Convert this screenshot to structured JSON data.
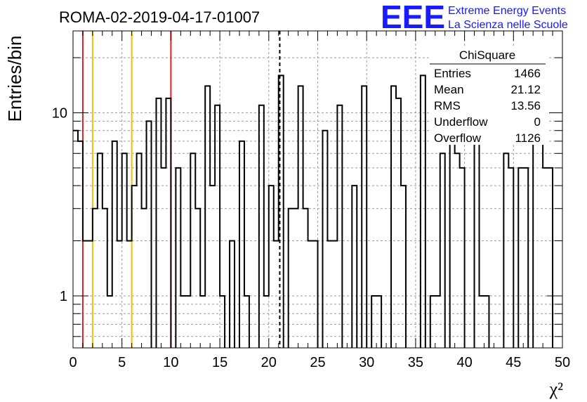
{
  "header": {
    "title": "ROMA-02-2019-04-17-01007"
  },
  "logo": {
    "letters": "EEE",
    "line1": "Extreme Energy Events",
    "line2": "La Scienza nelle Scuole"
  },
  "stats": {
    "title": "ChiSquare",
    "rows": [
      {
        "label": "Entries",
        "value": "1466"
      },
      {
        "label": "Mean",
        "value": "21.12"
      },
      {
        "label": "RMS",
        "value": "13.56"
      },
      {
        "label": "Underflow",
        "value": "0"
      },
      {
        "label": "Overflow",
        "value": "1126"
      }
    ]
  },
  "chart_data": {
    "type": "histogram",
    "ylabel": "Entries/bin",
    "xlabel": "χ²",
    "xlim": [
      0,
      50
    ],
    "ylim": [
      0.52,
      28
    ],
    "yscale": "log",
    "grid": true,
    "bin_width": 0.5,
    "bins": [
      [
        0.0,
        8
      ],
      [
        0.5,
        7
      ],
      [
        1.0,
        2
      ],
      [
        1.5,
        2
      ],
      [
        2.0,
        3
      ],
      [
        2.5,
        6
      ],
      [
        3.0,
        3
      ],
      [
        3.5,
        1
      ],
      [
        4.0,
        7
      ],
      [
        4.5,
        2
      ],
      [
        5.0,
        6
      ],
      [
        5.5,
        2
      ],
      [
        6.0,
        4
      ],
      [
        6.5,
        6
      ],
      [
        7.0,
        3
      ],
      [
        7.5,
        9
      ],
      [
        8.5,
        12
      ],
      [
        9.0,
        5
      ],
      [
        9.5,
        12
      ],
      [
        10.5,
        5
      ],
      [
        11.0,
        1
      ],
      [
        11.5,
        1
      ],
      [
        12.0,
        6
      ],
      [
        12.5,
        3
      ],
      [
        13.0,
        1
      ],
      [
        13.5,
        14
      ],
      [
        14.0,
        4
      ],
      [
        14.5,
        11
      ],
      [
        15.0,
        1
      ],
      [
        16.0,
        2
      ],
      [
        17.0,
        7
      ],
      [
        17.5,
        1
      ],
      [
        19.0,
        11
      ],
      [
        19.5,
        1
      ],
      [
        20.0,
        4
      ],
      [
        20.5,
        2
      ],
      [
        21.0,
        16
      ],
      [
        22.0,
        3
      ],
      [
        22.5,
        3
      ],
      [
        23.0,
        14
      ],
      [
        23.5,
        3
      ],
      [
        24.0,
        2
      ],
      [
        24.5,
        2
      ],
      [
        25.5,
        8
      ],
      [
        26.0,
        2
      ],
      [
        26.5,
        2
      ],
      [
        27.0,
        11
      ],
      [
        28.5,
        4
      ],
      [
        29.5,
        14
      ],
      [
        30.5,
        1
      ],
      [
        31.0,
        1
      ],
      [
        32.5,
        14
      ],
      [
        33.0,
        12
      ],
      [
        33.5,
        4
      ],
      [
        35.5,
        16
      ],
      [
        36.5,
        1
      ],
      [
        37.0,
        1
      ],
      [
        37.5,
        6
      ],
      [
        38.5,
        12
      ],
      [
        39.0,
        6
      ],
      [
        39.5,
        5
      ],
      [
        41.0,
        14
      ],
      [
        41.5,
        1
      ],
      [
        42.0,
        1
      ],
      [
        44.0,
        6
      ],
      [
        44.5,
        5
      ],
      [
        45.5,
        5
      ],
      [
        46.0,
        5
      ],
      [
        47.0,
        7
      ],
      [
        47.5,
        7
      ],
      [
        48.0,
        5
      ],
      [
        48.5,
        5
      ]
    ],
    "vertical_lines": [
      {
        "x": 1.0,
        "color": "#dd2222",
        "style": "solid"
      },
      {
        "x": 2.0,
        "color": "#f0c000",
        "style": "solid"
      },
      {
        "x": 6.0,
        "color": "#f0c000",
        "style": "solid"
      },
      {
        "x": 10.0,
        "color": "#dd2222",
        "style": "solid"
      },
      {
        "x": 21.12,
        "color": "#000000",
        "style": "dashed"
      }
    ],
    "x_ticks": [
      0,
      5,
      10,
      15,
      20,
      25,
      30,
      35,
      40,
      45,
      50
    ],
    "y_ticks": [
      1,
      10
    ]
  }
}
